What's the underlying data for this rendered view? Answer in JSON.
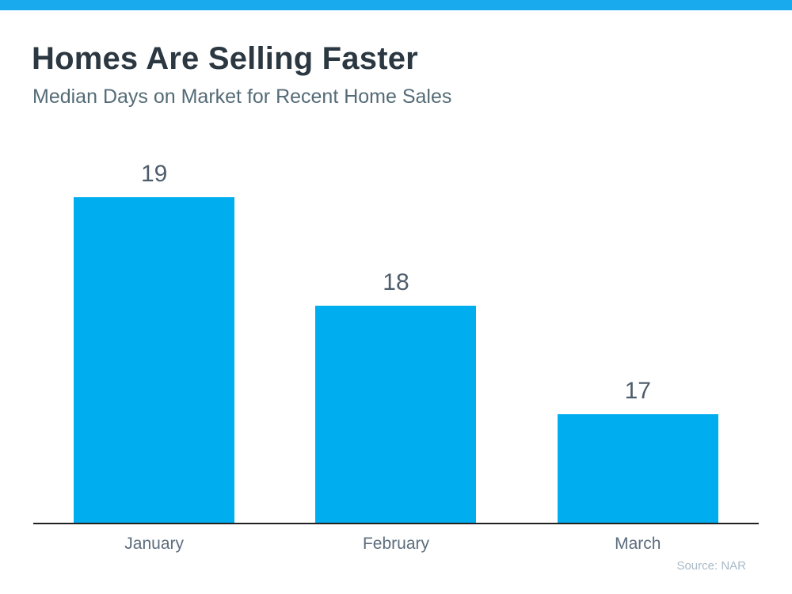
{
  "accent": {
    "stripe_color": "#18AAEC"
  },
  "chart_data": {
    "type": "bar",
    "title": "Homes Are Selling Faster",
    "subtitle": "Median Days on Market for Recent Home Sales",
    "categories": [
      "January",
      "February",
      "March"
    ],
    "values": [
      19,
      18,
      17
    ],
    "value_labels": [
      "19",
      "18",
      "17"
    ],
    "ylim": [
      16,
      19.43
    ],
    "grid": false,
    "legend": "none",
    "bar_color": "#00ADEF",
    "axis_color": "#222222",
    "source": "Source: NAR"
  }
}
